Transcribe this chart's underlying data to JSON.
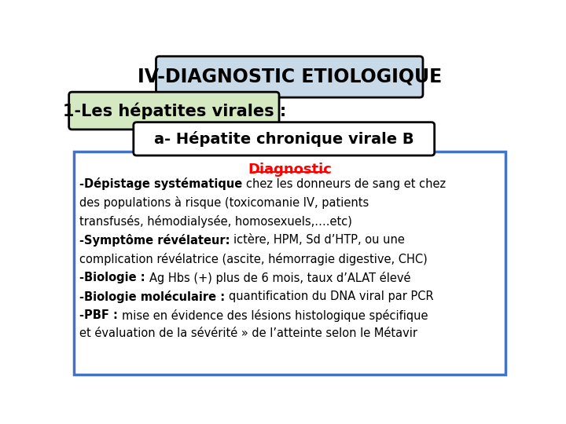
{
  "title1": "IV-DIAGNOSTIC ETIOLOGIQUE",
  "title2": "1-Les hépatites virales :",
  "title3": "a- Hépatite chronique virale B",
  "subtitle": "Diagnostic",
  "lines": [
    [
      {
        "text": "-Dépistage systématique ",
        "bold": true,
        "color": "#000000"
      },
      {
        "text": "chez les donneurs de sang et chez",
        "bold": false,
        "color": "#000000"
      }
    ],
    [
      {
        "text": "des populations à risque (toxicomanie IV, patients",
        "bold": false,
        "color": "#000000"
      }
    ],
    [
      {
        "text": "transfusés, hémodialysée, homosexuels,….etc)",
        "bold": false,
        "color": "#000000"
      }
    ],
    [
      {
        "text": "-Symptôme révélateur: ",
        "bold": true,
        "color": "#000000"
      },
      {
        "text": "ictère, HPM, Sd d’HTP, ou une",
        "bold": false,
        "color": "#000000"
      }
    ],
    [
      {
        "text": "complication révélatrice (ascite, hémorragie digestive, CHC)",
        "bold": false,
        "color": "#000000"
      }
    ],
    [
      {
        "text": "-Biologie : ",
        "bold": true,
        "color": "#000000"
      },
      {
        "text": "Ag Hbs (+) plus de 6 mois, taux d’ALAT élevé",
        "bold": false,
        "color": "#000000"
      }
    ],
    [
      {
        "text": "-Biologie moléculaire : ",
        "bold": true,
        "color": "#000000"
      },
      {
        "text": "quantification du DNA viral par PCR",
        "bold": false,
        "color": "#000000"
      }
    ],
    [
      {
        "text": "-PBF : ",
        "bold": true,
        "color": "#000000"
      },
      {
        "text": "mise en évidence des lésions histologique spécifique",
        "bold": false,
        "color": "#000000"
      }
    ],
    [
      {
        "text": "et évaluation de la sévérité » de l’atteinte selon le Métavir",
        "bold": false,
        "color": "#000000"
      }
    ]
  ],
  "bg_color": "#ffffff",
  "box1_bg": "#c8d9e8",
  "box1_edge": "#000000",
  "box2_bg": "#d4e8c2",
  "box2_edge": "#000000",
  "box3_bg": "#ffffff",
  "box3_edge": "#000000",
  "main_box_bg": "#ffffff",
  "main_box_edge": "#4472c4",
  "subtitle_color": "#ff0000"
}
